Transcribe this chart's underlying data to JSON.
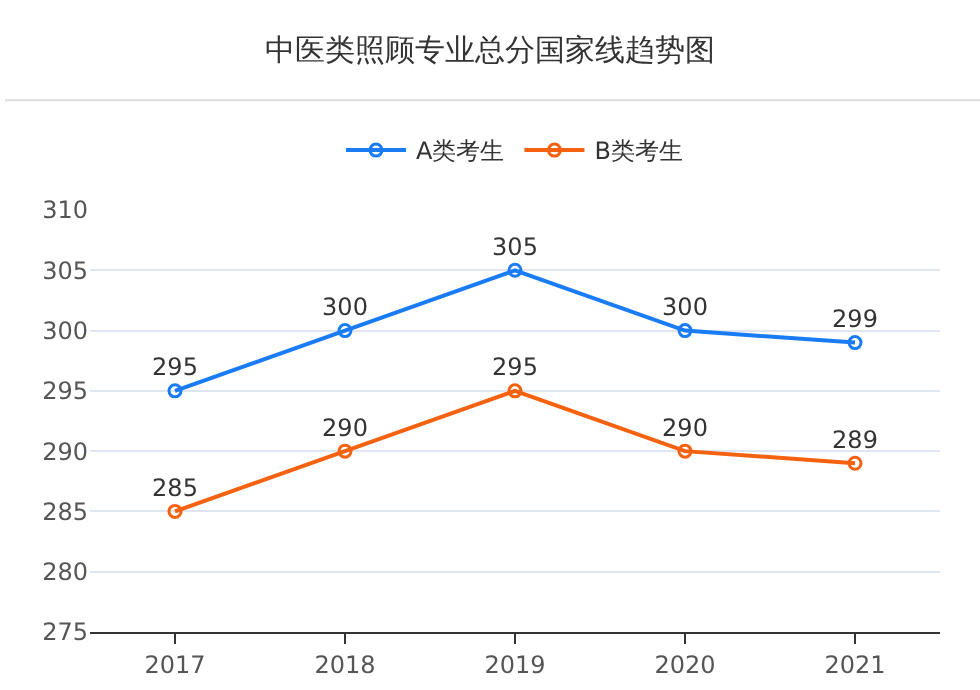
{
  "chart_data": {
    "type": "line",
    "title": "中医类照顾专业总分国家线趋势图",
    "categories": [
      "2017",
      "2018",
      "2019",
      "2020",
      "2021"
    ],
    "series": [
      {
        "name": "A类考生",
        "color": "#1a7cf5",
        "values": [
          295,
          300,
          305,
          300,
          299
        ]
      },
      {
        "name": "B类考生",
        "color": "#f5620f",
        "values": [
          285,
          290,
          295,
          290,
          289
        ]
      }
    ],
    "ylim": [
      275,
      310
    ],
    "yticks": [
      275,
      280,
      285,
      290,
      295,
      300,
      305,
      310
    ],
    "grid": "y",
    "legend": "top",
    "marker": "circle",
    "line_style": "solid",
    "data_labels": true
  }
}
